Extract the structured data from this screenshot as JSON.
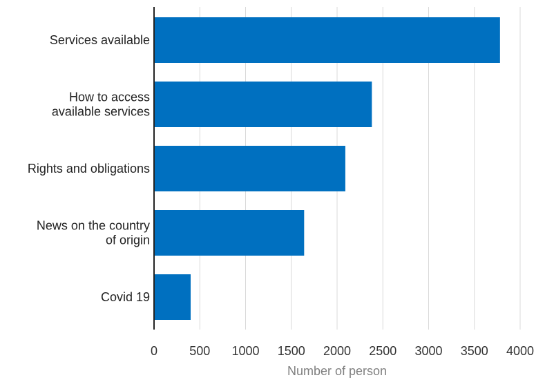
{
  "chart_data": {
    "type": "bar",
    "orientation": "horizontal",
    "categories": [
      [
        "Services available"
      ],
      [
        "How to access",
        "available services"
      ],
      [
        "Rights and obligations"
      ],
      [
        "News on the country",
        "of origin"
      ],
      [
        "Covid 19"
      ]
    ],
    "values": [
      3780,
      2380,
      2090,
      1640,
      400
    ],
    "xlim": [
      0,
      4000
    ],
    "xticks": [
      0,
      500,
      1000,
      1500,
      2000,
      2500,
      3000,
      3500,
      4000
    ],
    "tick_labels": [
      "0",
      "500",
      "1000",
      "1500",
      "2000",
      "2500",
      "3000",
      "3500",
      "4000"
    ],
    "xlabel": "Number of person",
    "ylabel": "",
    "title": "",
    "grid": "vertical",
    "bar_color": "#0070c0",
    "grid_color": "#d9d9d9"
  }
}
